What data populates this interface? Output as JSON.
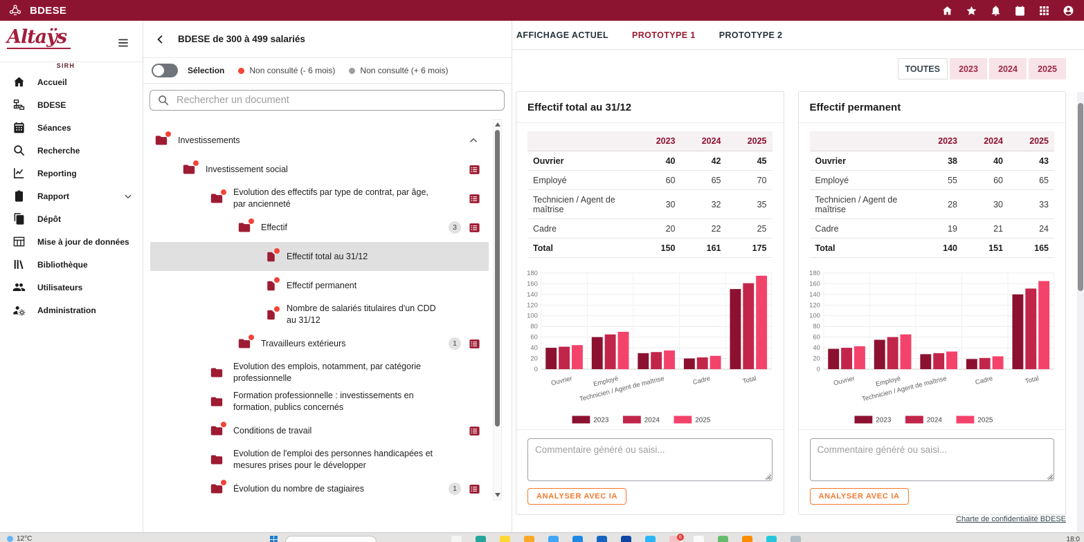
{
  "topbar": {
    "title": "BDESE",
    "nav_icons": [
      "home",
      "star",
      "bell",
      "calendar",
      "apps",
      "account"
    ]
  },
  "sidebar": {
    "logo_text": "Altaÿs",
    "logo_subtext": "SIRH",
    "items": [
      {
        "label": "Accueil",
        "icon": "home"
      },
      {
        "label": "BDESE",
        "icon": "org"
      },
      {
        "label": "Séances",
        "icon": "calendar"
      },
      {
        "label": "Recherche",
        "icon": "search"
      },
      {
        "label": "Reporting",
        "icon": "reporting"
      },
      {
        "label": "Rapport",
        "icon": "rapport",
        "chevron": "down"
      },
      {
        "label": "Dépôt",
        "icon": "depot"
      },
      {
        "label": "Mise à jour de données",
        "icon": "updatetable"
      },
      {
        "label": "Bibliothèque",
        "icon": "library"
      },
      {
        "label": "Utilisateurs",
        "icon": "users"
      },
      {
        "label": "Administration",
        "icon": "admin"
      }
    ]
  },
  "doc_panel": {
    "title": "BDESE de 300 à 499 salariés",
    "selection_label": "Sélection",
    "legend": [
      {
        "label": "Non consulté (- 6 mois)",
        "color": "#F44336"
      },
      {
        "label": "Non consulté (+ 6 mois)",
        "color": "#9E9E9E"
      }
    ],
    "search_placeholder": "Rechercher un document",
    "tree": [
      {
        "label": "Investissements",
        "level": 0,
        "kind": "folder",
        "dot": true,
        "chevron": "up"
      },
      {
        "label": "Investissement social",
        "level": 1,
        "kind": "folder",
        "dot": true,
        "table_icon": true
      },
      {
        "label": "Evolution des effectifs par type de contrat, par âge, par ancienneté",
        "level": 2,
        "kind": "folder",
        "dot": true,
        "table_icon": true
      },
      {
        "label": "Effectif",
        "level": 3,
        "kind": "folder",
        "dot": true,
        "badge": "3",
        "table_icon": true
      },
      {
        "label": "Effectif total au 31/12",
        "level": 4,
        "kind": "file",
        "dot": true,
        "selected": true
      },
      {
        "label": "Effectif permanent",
        "level": 4,
        "kind": "file",
        "dot": true
      },
      {
        "label": "Nombre de salariés titulaires d'un CDD au 31/12",
        "level": 4,
        "kind": "file",
        "dot": true
      },
      {
        "label": "Travailleurs extérieurs",
        "level": 3,
        "kind": "folder",
        "dot": true,
        "badge": "1",
        "table_icon": true
      },
      {
        "label": "Evolution des emplois, notamment, par catégorie professionnelle",
        "level": 2,
        "kind": "folder",
        "dot": false
      },
      {
        "label": "Formation professionnelle : investissements en formation, publics concernés",
        "level": 2,
        "kind": "folder",
        "dot": false
      },
      {
        "label": "Conditions de travail",
        "level": 2,
        "kind": "folder",
        "dot": true,
        "table_icon": true
      },
      {
        "label": "Evolution de l'emploi des personnes handicapées et mesures prises pour le développer",
        "level": 2,
        "kind": "folder",
        "dot": false
      },
      {
        "label": "Évolution du nombre de stagiaires",
        "level": 2,
        "kind": "folder",
        "dot": true,
        "badge": "1",
        "table_icon": true
      }
    ]
  },
  "content": {
    "tabs": [
      {
        "label": "AFFICHAGE ACTUEL",
        "active": false
      },
      {
        "label": "PROTOTYPE 1",
        "active": true
      },
      {
        "label": "PROTOTYPE 2",
        "active": false
      }
    ],
    "year_filters": [
      {
        "label": "TOUTES",
        "active": true
      },
      {
        "label": "2023",
        "active": false
      },
      {
        "label": "2024",
        "active": false
      },
      {
        "label": "2025",
        "active": false
      }
    ],
    "comment_placeholder": "Commentaire généré ou saisi...",
    "analyze_button_label": "ANALYSER AVEC IA",
    "footer_link": "Charte de confidentialité BDESE"
  },
  "chart_data": [
    {
      "type": "bar",
      "title": "Effectif total au 31/12",
      "categories": [
        "Ouvrier",
        "Employé",
        "Technicien / Agent de maîtrise",
        "Cadre",
        "Total"
      ],
      "series": [
        {
          "name": "2023",
          "color": "#8C1130",
          "values": [
            40,
            60,
            30,
            20,
            150
          ]
        },
        {
          "name": "2024",
          "color": "#C2254A",
          "values": [
            42,
            65,
            32,
            22,
            161
          ]
        },
        {
          "name": "2025",
          "color": "#F4436B",
          "values": [
            45,
            70,
            35,
            25,
            175
          ]
        }
      ],
      "row_bold": [
        true,
        false,
        false,
        false,
        true
      ],
      "ylim": [
        0,
        180
      ],
      "ytick": 20,
      "grid": true,
      "legend_position": "bottom"
    },
    {
      "type": "bar",
      "title": "Effectif permanent",
      "categories": [
        "Ouvrier",
        "Employé",
        "Technicien / Agent de maîtrise",
        "Cadre",
        "Total"
      ],
      "series": [
        {
          "name": "2023",
          "color": "#8C1130",
          "values": [
            38,
            55,
            28,
            19,
            140
          ]
        },
        {
          "name": "2024",
          "color": "#C2254A",
          "values": [
            40,
            60,
            30,
            21,
            151
          ]
        },
        {
          "name": "2025",
          "color": "#F4436B",
          "values": [
            43,
            65,
            33,
            24,
            165
          ]
        }
      ],
      "row_bold": [
        true,
        false,
        false,
        false,
        true
      ],
      "ylim": [
        0,
        180
      ],
      "ytick": 20,
      "grid": true,
      "legend_position": "bottom"
    }
  ],
  "taskbar": {
    "weather_temp": "12°C",
    "time_fragment": "18:0",
    "badge_count": "6",
    "badge_icon_index": 9,
    "app_icon_colors": [
      "#F5F5F5",
      "#26A69A",
      "#FDD835",
      "#F9A825",
      "#42A5F5",
      "#1E88E5",
      "#1565C0",
      "#0D47A1",
      "#29B6F6",
      "#F6C1C5",
      "#FAFAFA",
      "#66BB6A",
      "#FB8C00",
      "#26C6DA",
      "#B0BEC5"
    ]
  },
  "colors": {
    "topbar_bg": "#8C1430",
    "accent": "#9E1B32",
    "tab_active": "#9C1B30",
    "year_pill_bg": "#F7E3E8",
    "year_pill_text": "#9C2748",
    "analyze_orange": "#F4792E",
    "selected_row_bg": "#E0E0E0"
  }
}
